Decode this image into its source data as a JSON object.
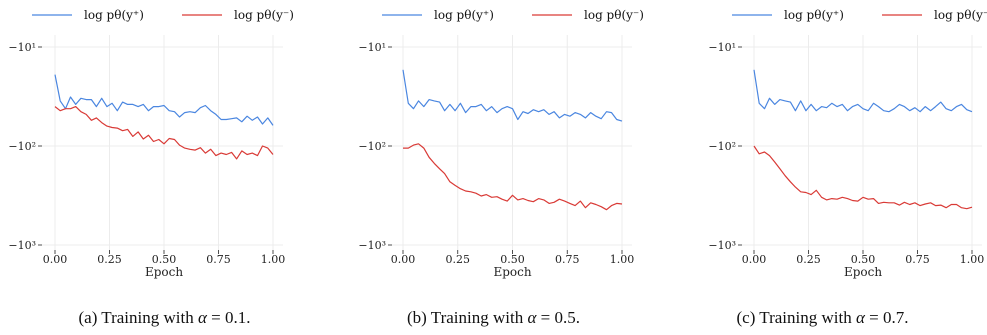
{
  "legend": {
    "pos_label": "log pθ(y⁺)",
    "neg_label": "log pθ(y⁻)"
  },
  "colors": {
    "pos": "#4a86e0",
    "neg": "#d93a36",
    "grid": "#ececec",
    "axis": "#222222"
  },
  "captions": [
    {
      "prefix": "(a) Training with ",
      "alpha": "α",
      "suffix": " = 0.1."
    },
    {
      "prefix": "(b) Training with ",
      "alpha": "α",
      "suffix": " = 0.5."
    },
    {
      "prefix": "(c) Training with ",
      "alpha": "α",
      "suffix": " = 0.7."
    }
  ],
  "chart_data": [
    {
      "type": "line",
      "xlabel": "Epoch",
      "xticks": [
        "0.00",
        "0.25",
        "0.50",
        "0.75",
        "1.00"
      ],
      "yticks": [
        "−10¹",
        "−10²",
        "−10³"
      ],
      "yscale": "symlog",
      "xlim": [
        0,
        1
      ],
      "ylim": [
        -1000,
        -10
      ],
      "legend": "top",
      "x": [
        0,
        0.024,
        0.048,
        0.071,
        0.095,
        0.119,
        0.143,
        0.167,
        0.19,
        0.214,
        0.238,
        0.262,
        0.286,
        0.31,
        0.333,
        0.357,
        0.381,
        0.405,
        0.429,
        0.452,
        0.476,
        0.5,
        0.524,
        0.548,
        0.571,
        0.595,
        0.619,
        0.643,
        0.667,
        0.69,
        0.714,
        0.738,
        0.762,
        0.786,
        0.81,
        0.833,
        0.857,
        0.881,
        0.905,
        0.929,
        0.952,
        0.976,
        1.0
      ],
      "series": [
        {
          "name": "log pθ(y⁺)",
          "color": "pos",
          "values": [
            -19,
            -35,
            -42,
            -32,
            -38,
            -33,
            -34,
            -34,
            -40,
            -33,
            -40,
            -37,
            -44,
            -36,
            -38,
            -38,
            -40,
            -38,
            -44,
            -40,
            -40,
            -39,
            -44,
            -45,
            -51,
            -46,
            -45,
            -46,
            -41,
            -39,
            -44,
            -48,
            -54,
            -54,
            -53,
            -52,
            -57,
            -50,
            -55,
            -51,
            -60,
            -52,
            -62
          ]
        },
        {
          "name": "log pθ(y⁻)",
          "color": "neg",
          "values": [
            -40,
            -44,
            -42,
            -42,
            -40,
            -45,
            -48,
            -55,
            -52,
            -58,
            -63,
            -65,
            -66,
            -70,
            -68,
            -80,
            -72,
            -85,
            -78,
            -90,
            -86,
            -95,
            -84,
            -86,
            -98,
            -105,
            -108,
            -110,
            -104,
            -118,
            -108,
            -125,
            -118,
            -122,
            -116,
            -135,
            -112,
            -122,
            -118,
            -125,
            -100,
            -105,
            -122
          ]
        }
      ]
    },
    {
      "type": "line",
      "xlabel": "Epoch",
      "xticks": [
        "0.00",
        "0.25",
        "0.50",
        "0.75",
        "1.00"
      ],
      "yticks": [
        "−10¹",
        "−10²",
        "−10³"
      ],
      "yscale": "symlog",
      "xlim": [
        0,
        1
      ],
      "ylim": [
        -1000,
        -10
      ],
      "legend": "top",
      "x": [
        0,
        0.024,
        0.048,
        0.071,
        0.095,
        0.119,
        0.143,
        0.167,
        0.19,
        0.214,
        0.238,
        0.262,
        0.286,
        0.31,
        0.333,
        0.357,
        0.381,
        0.405,
        0.429,
        0.452,
        0.476,
        0.5,
        0.524,
        0.548,
        0.571,
        0.595,
        0.619,
        0.643,
        0.667,
        0.69,
        0.714,
        0.738,
        0.762,
        0.786,
        0.81,
        0.833,
        0.857,
        0.881,
        0.905,
        0.929,
        0.952,
        0.976,
        1.0
      ],
      "series": [
        {
          "name": "log pθ(y⁺)",
          "color": "pos",
          "values": [
            -17,
            -37,
            -42,
            -35,
            -40,
            -34,
            -35,
            -36,
            -44,
            -38,
            -44,
            -37,
            -46,
            -40,
            -40,
            -38,
            -44,
            -40,
            -46,
            -42,
            -40,
            -42,
            -54,
            -45,
            -47,
            -43,
            -45,
            -43,
            -48,
            -45,
            -52,
            -48,
            -50,
            -46,
            -48,
            -52,
            -46,
            -50,
            -53,
            -45,
            -46,
            -54,
            -56
          ]
        },
        {
          "name": "log pθ(y⁻)",
          "color": "neg",
          "values": [
            -105,
            -105,
            -98,
            -95,
            -105,
            -130,
            -150,
            -170,
            -190,
            -230,
            -250,
            -270,
            -285,
            -290,
            -300,
            -320,
            -310,
            -330,
            -325,
            -345,
            -360,
            -315,
            -350,
            -340,
            -355,
            -365,
            -340,
            -350,
            -380,
            -370,
            -345,
            -360,
            -380,
            -400,
            -360,
            -420,
            -375,
            -390,
            -410,
            -440,
            -400,
            -380,
            -385
          ]
        }
      ]
    },
    {
      "type": "line",
      "xlabel": "Epoch",
      "xticks": [
        "0.00",
        "0.25",
        "0.50",
        "0.75",
        "1.00"
      ],
      "yticks": [
        "−10¹",
        "−10²",
        "−10³"
      ],
      "yscale": "symlog",
      "xlim": [
        0,
        1
      ],
      "ylim": [
        -1000,
        -10
      ],
      "legend": "top",
      "x": [
        0,
        0.024,
        0.048,
        0.071,
        0.095,
        0.119,
        0.143,
        0.167,
        0.19,
        0.214,
        0.238,
        0.262,
        0.286,
        0.31,
        0.333,
        0.357,
        0.381,
        0.405,
        0.429,
        0.452,
        0.476,
        0.5,
        0.524,
        0.548,
        0.571,
        0.595,
        0.619,
        0.643,
        0.667,
        0.69,
        0.714,
        0.738,
        0.762,
        0.786,
        0.81,
        0.833,
        0.857,
        0.881,
        0.905,
        0.929,
        0.952,
        0.976,
        1.0
      ],
      "series": [
        {
          "name": "log pθ(y⁺)",
          "color": "pos",
          "values": [
            -17,
            -37,
            -42,
            -33,
            -38,
            -34,
            -35,
            -36,
            -44,
            -35,
            -44,
            -38,
            -44,
            -40,
            -41,
            -37,
            -40,
            -38,
            -44,
            -40,
            -38,
            -42,
            -44,
            -37,
            -40,
            -44,
            -45,
            -42,
            -38,
            -40,
            -44,
            -41,
            -45,
            -40,
            -44,
            -40,
            -36,
            -42,
            -44,
            -40,
            -38,
            -43,
            -45
          ]
        },
        {
          "name": "log pθ(y⁻)",
          "color": "neg",
          "values": [
            -100,
            -120,
            -115,
            -125,
            -145,
            -170,
            -200,
            -230,
            -260,
            -290,
            -295,
            -310,
            -280,
            -330,
            -350,
            -340,
            -345,
            -330,
            -340,
            -355,
            -360,
            -330,
            -345,
            -340,
            -380,
            -370,
            -375,
            -375,
            -395,
            -370,
            -390,
            -375,
            -400,
            -385,
            -375,
            -400,
            -395,
            -420,
            -390,
            -390,
            -420,
            -430,
            -415
          ]
        }
      ]
    }
  ]
}
